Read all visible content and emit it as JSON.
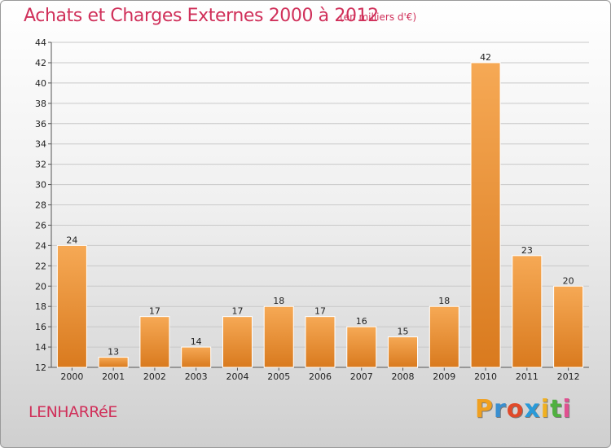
{
  "header": {
    "title": "Achats et Charges Externes 2000 à 2012",
    "subtitle": "(en milliers d'€)"
  },
  "footer": {
    "commune": "LENHARRéE",
    "logo_letters": [
      "P",
      "r",
      "o",
      "x",
      "i",
      "t",
      "i"
    ],
    "logo_colors": [
      "#f0a020",
      "#3a8fd0",
      "#e04a2a",
      "#2a9ad8",
      "#f0b020",
      "#50b040",
      "#e05090"
    ]
  },
  "chart_data": {
    "type": "bar",
    "title": "Achats et Charges Externes 2000 à 2012",
    "categories": [
      "2000",
      "2001",
      "2002",
      "2003",
      "2004",
      "2005",
      "2006",
      "2007",
      "2008",
      "2009",
      "2010",
      "2011",
      "2012"
    ],
    "values": [
      24,
      13,
      17,
      14,
      17,
      18,
      17,
      16,
      15,
      18,
      42,
      23,
      20
    ],
    "data_labels": [
      "24",
      "13",
      "17",
      "14",
      "17",
      "18",
      "17",
      "16",
      "15",
      "18",
      "42",
      "23",
      "20"
    ],
    "yticks": [
      "12",
      "14",
      "16",
      "18",
      "20",
      "22",
      "24",
      "26",
      "28",
      "30",
      "32",
      "34",
      "36",
      "38",
      "40",
      "42",
      "44"
    ],
    "ylim": [
      12,
      44
    ],
    "grid": true,
    "bar_color": "#f39a3e"
  }
}
